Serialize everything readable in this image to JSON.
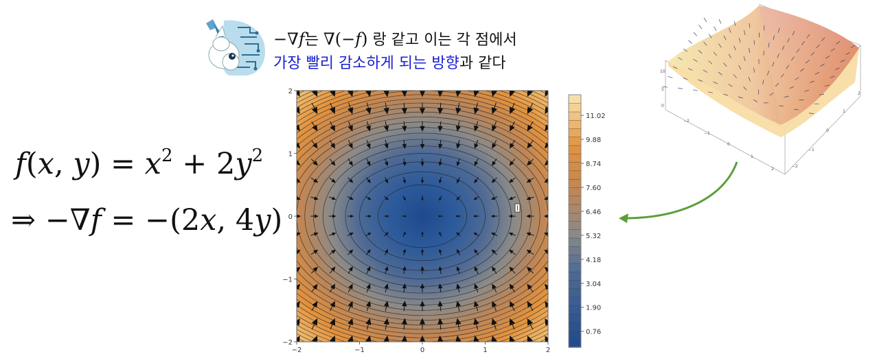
{
  "caption": {
    "line1": {
      "math1_prefix": "−∇",
      "math1_var": "f",
      "text1": "는 ",
      "math2_prefix": "∇(−",
      "math2_var": "f",
      "math2_suffix": ")",
      "text2": " 랑 같고 이는 각 점에서"
    },
    "line2": {
      "highlight": "가장 빨리 감소하게 되는 방향",
      "rest": "과 같다"
    }
  },
  "formula1": {
    "f": "f",
    "args_open": "(",
    "x": "x",
    "comma": ", ",
    "y": "y",
    "args_close": ")",
    "eq": " = ",
    "x2": "x",
    "exp1": "2",
    "plus": " + 2",
    "y2": "y",
    "exp2": "2"
  },
  "formula2": {
    "arrow": "⇒ −∇",
    "f": "f",
    "eq": " = −(2",
    "x": "x",
    "sep": ", 4",
    "y": "y",
    "close": ")"
  },
  "chart_data": [
    {
      "type": "heatmap",
      "description_function": "x^2 + 2y^2",
      "x_ticks": [
        "−2",
        "−1",
        "0",
        "1",
        "2"
      ],
      "y_ticks": [
        "2",
        "1",
        "0",
        "−1",
        "−2"
      ],
      "xlim": [
        -2,
        2
      ],
      "ylim": [
        -2,
        2
      ],
      "contour_levels": [
        0.5,
        1.0,
        1.5,
        2,
        2.5,
        3,
        3.5,
        4,
        4.5,
        5,
        5.5,
        6,
        6.5,
        7,
        7.5,
        8,
        8.5,
        9,
        9.5,
        10,
        10.5,
        11,
        11.5,
        12
      ],
      "vector_field": "-(2x, 4y)",
      "colorbar_labels": [
        "11.02",
        "9.88",
        "8.74",
        "7.60",
        "6.46",
        "5.32",
        "4.18",
        "3.04",
        "1.90",
        "0.76"
      ],
      "colorbar_values": [
        11.02,
        9.88,
        8.74,
        7.6,
        6.46,
        5.32,
        4.18,
        3.04,
        1.9,
        0.76
      ],
      "colorbar_range": [
        0,
        12
      ],
      "colors": {
        "low": "#1f4a8c",
        "mid": "#7f8a99",
        "high": "#e08a3a",
        "top": "#f8e6b4"
      }
    }
  ],
  "surface_plot": {
    "z_ticks": [
      "10",
      "5",
      "0"
    ],
    "x_ticks": [
      "−2",
      "−1",
      "0",
      "1",
      "2"
    ],
    "y_ticks": [
      "−2",
      "−1",
      "0",
      "1",
      "2"
    ]
  },
  "colors": {
    "arrow": "#5a9e3a",
    "highlight": "#1a1fd0"
  }
}
